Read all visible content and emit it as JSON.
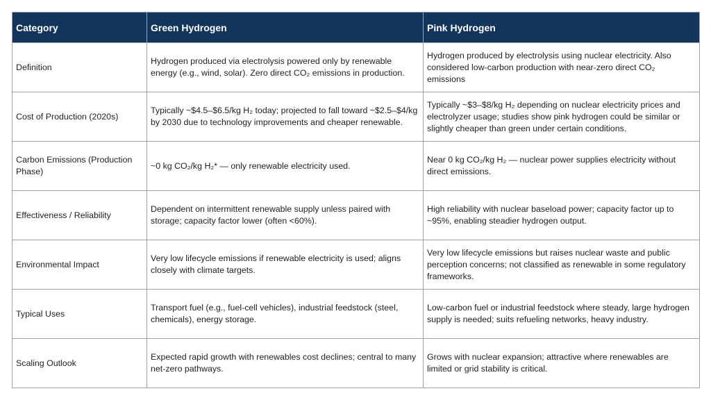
{
  "table": {
    "headers": [
      "Category",
      "Green Hydrogen",
      "Pink Hydrogen"
    ],
    "rows": [
      [
        "Definition",
        "Hydrogen produced via electrolysis powered only by renewable energy (e.g., wind, solar). Zero direct CO₂ emissions in production.",
        "Hydrogen produced by electrolysis using nuclear electricity. Also considered low-carbon production with near-zero direct CO₂ emissions"
      ],
      [
        "Cost of Production (2020s)",
        "Typically ~$4.5–$6.5/kg H₂ today; projected to fall toward ~$2.5–$4/kg by 2030 due to technology improvements and cheaper renewable.",
        "Typically ~$3–$8/kg H₂ depending on nuclear electricity prices and electrolyzer usage; studies show pink hydrogen could be similar or slightly cheaper than green under certain conditions."
      ],
      [
        "Carbon Emissions (Production Phase)",
        "~0 kg CO₂/kg H₂* — only renewable electricity used.",
        "Near 0 kg CO₂/kg H₂ — nuclear power supplies electricity without direct emissions."
      ],
      [
        "Effectiveness / Reliability",
        "Dependent on intermittent renewable supply unless paired with storage; capacity factor lower (often <60%).",
        "High reliability with nuclear baseload power; capacity factor up to ~95%, enabling steadier hydrogen output."
      ],
      [
        "Environmental Impact",
        "Very low lifecycle emissions if renewable electricity is used; aligns closely with climate targets.",
        "Very low lifecycle emissions but raises nuclear waste and public perception concerns; not classified as renewable in some regulatory frameworks."
      ],
      [
        "Typical Uses",
        "Transport fuel (e.g., fuel-cell vehicles), industrial feedstock (steel, chemicals), energy storage.",
        "Low-carbon fuel or industrial feedstock where steady, large hydrogen supply is needed; suits refueling networks, heavy industry."
      ],
      [
        "Scaling Outlook",
        "Expected rapid growth with renewables cost declines; central to many net-zero pathways.",
        "Grows with nuclear expansion; attractive where renewables are limited or grid stability is critical."
      ]
    ]
  },
  "colors": {
    "header_bg": "#12355b",
    "header_text": "#ffffff",
    "border": "#9aa3ad"
  }
}
